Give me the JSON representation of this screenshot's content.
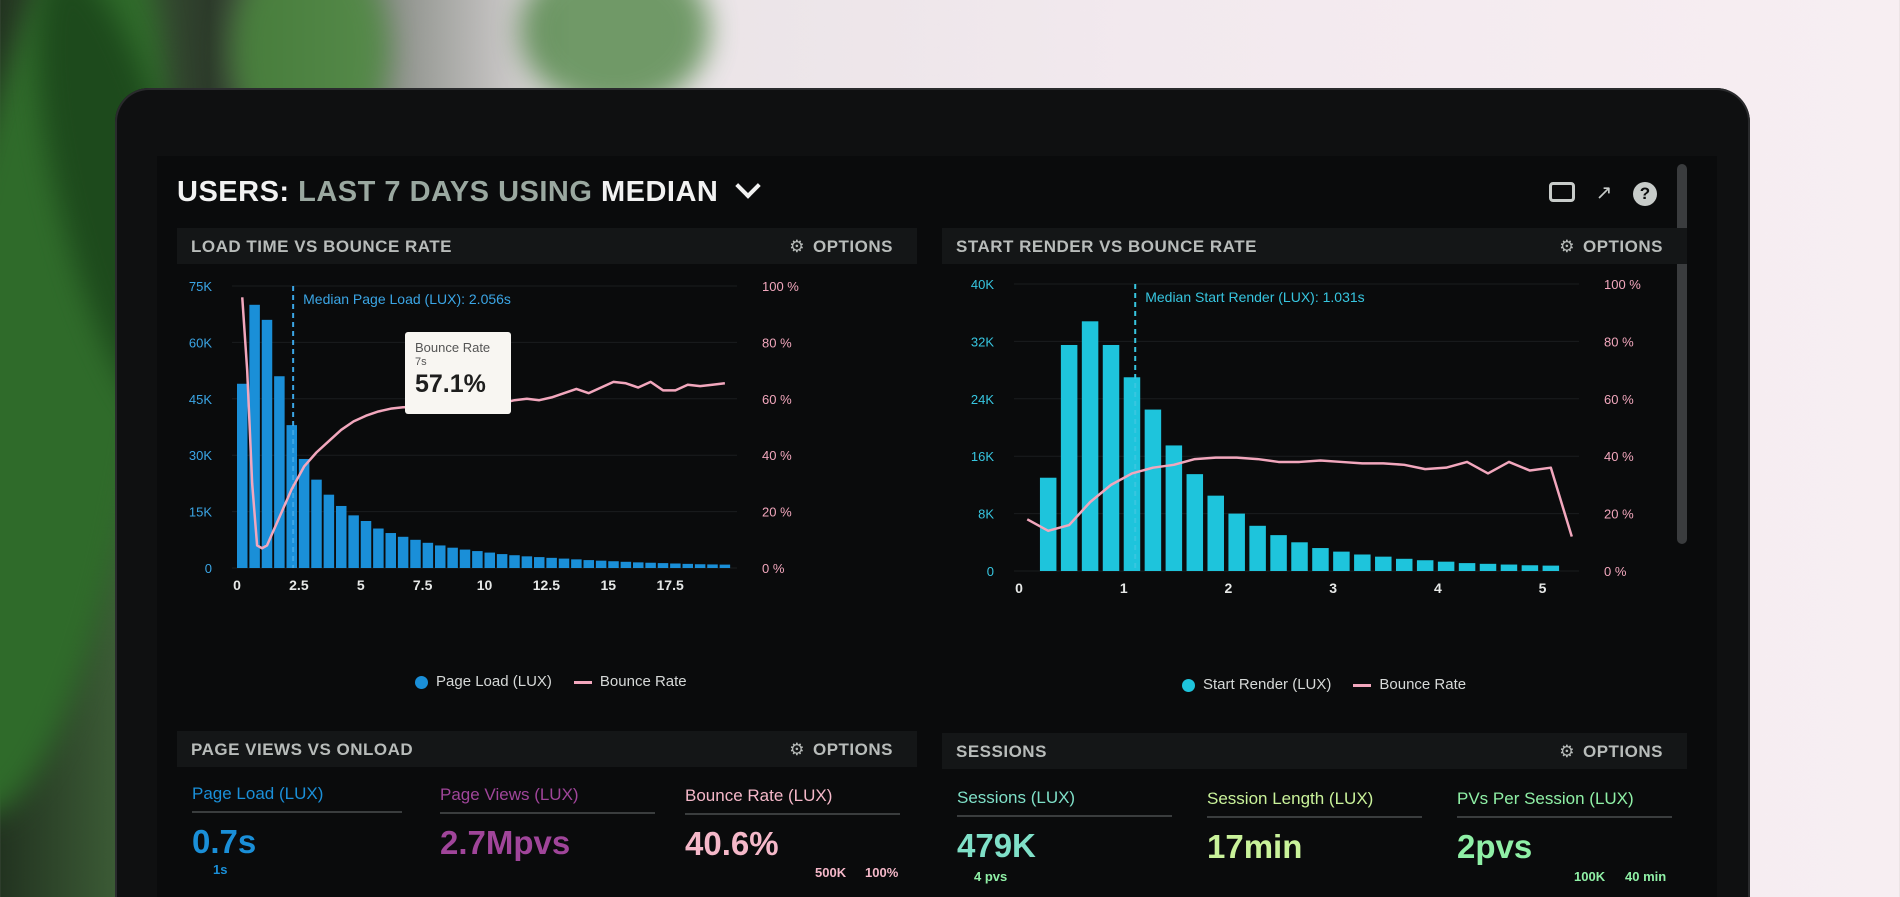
{
  "dashboard": {
    "title_users": "USERS:",
    "title_range": "LAST 7 DAYS",
    "title_using": "USING",
    "title_metric": "MEDIAN",
    "icons": [
      "monitor-icon",
      "share-icon",
      "help-icon"
    ]
  },
  "panels": {
    "load_time": {
      "title": "LOAD TIME VS BOUNCE RATE",
      "options": "OPTIONS"
    },
    "start_render": {
      "title": "START RENDER VS BOUNCE RATE",
      "options": "OPTIONS"
    },
    "page_views": {
      "title": "PAGE VIEWS VS ONLOAD",
      "options": "OPTIONS"
    },
    "sessions": {
      "title": "SESSIONS",
      "options": "OPTIONS"
    }
  },
  "tooltip": {
    "label": "Bounce Rate",
    "x": "7s",
    "value": "57.1%"
  },
  "chart_data": [
    {
      "type": "bar",
      "title": "LOAD TIME VS BOUNCE RATE",
      "annotation": "Median Page Load (LUX): 2.056s",
      "median": 2.056,
      "x_ticks": [
        "0",
        "2.5",
        "5",
        "7.5",
        "10",
        "12.5",
        "15",
        "17.5"
      ],
      "xlim": [
        0,
        20
      ],
      "y_ticks": [
        "0",
        "15K",
        "30K",
        "45K",
        "60K",
        "75K"
      ],
      "ylim": [
        0,
        75000
      ],
      "y2_ticks": [
        "0 %",
        "20 %",
        "40 %",
        "60 %",
        "80 %",
        "100 %"
      ],
      "y2lim": [
        0,
        100
      ],
      "bar_color": "#1a8fd8",
      "line_color": "#f2a7bd",
      "series": [
        {
          "name": "Page Load (LUX)",
          "x": [
            0,
            0.5,
            1,
            1.5,
            2,
            2.5,
            3,
            3.5,
            4,
            4.5,
            5,
            5.5,
            6,
            6.5,
            7,
            7.5,
            8,
            8.5,
            9,
            9.5,
            10,
            10.5,
            11,
            11.5,
            12,
            12.5,
            13,
            13.5,
            14,
            14.5,
            15,
            15.5,
            16,
            16.5,
            17,
            17.5,
            18,
            18.5,
            19,
            19.5
          ],
          "values": [
            49000,
            70000,
            66000,
            51000,
            38000,
            29000,
            23500,
            19500,
            16500,
            14000,
            12500,
            10500,
            9300,
            8300,
            7500,
            6700,
            6000,
            5400,
            4900,
            4500,
            4100,
            3700,
            3400,
            3100,
            2900,
            2700,
            2500,
            2300,
            2100,
            1950,
            1800,
            1650,
            1500,
            1400,
            1300,
            1200,
            1100,
            1000,
            950,
            900
          ]
        },
        {
          "name": "Bounce Rate",
          "x": [
            0,
            0.2,
            0.4,
            0.6,
            0.8,
            1,
            1.2,
            1.5,
            2,
            2.5,
            3,
            3.5,
            4,
            4.5,
            5,
            5.5,
            6,
            6.5,
            7,
            7.5,
            8,
            8.5,
            9,
            9.5,
            10,
            10.5,
            11,
            11.5,
            12,
            12.5,
            13,
            13.5,
            14,
            14.5,
            15,
            15.5,
            16,
            16.5,
            17,
            17.5,
            18,
            18.5,
            19,
            19.5
          ],
          "values": [
            96,
            70,
            30,
            8,
            7,
            8,
            12,
            18,
            28,
            36,
            41,
            45,
            49,
            52,
            54,
            55.5,
            56.5,
            57,
            57.1,
            58,
            58,
            57.5,
            58,
            58,
            57.5,
            58.5,
            59.5,
            60,
            59.5,
            60.5,
            62,
            63.5,
            62,
            64,
            66,
            65.5,
            64,
            66,
            63,
            63,
            65,
            64.5,
            65,
            65.5
          ]
        }
      ]
    },
    {
      "type": "bar",
      "title": "START RENDER VS BOUNCE RATE",
      "annotation": "Median Start Render (LUX): 1.031s",
      "median": 1.031,
      "x_ticks": [
        "0",
        "1",
        "2",
        "3",
        "4",
        "5"
      ],
      "xlim": [
        0,
        5.3
      ],
      "y_ticks": [
        "0",
        "8K",
        "16K",
        "24K",
        "32K",
        "40K"
      ],
      "ylim": [
        0,
        40000
      ],
      "y2_ticks": [
        "0 %",
        "20 %",
        "40 %",
        "60 %",
        "80 %",
        "100 %"
      ],
      "y2lim": [
        0,
        100
      ],
      "bar_color": "#1ec4dc",
      "line_color": "#f2a7bd",
      "series": [
        {
          "name": "Start Render (LUX)",
          "x": [
            0.2,
            0.4,
            0.6,
            0.8,
            1,
            1.2,
            1.4,
            1.6,
            1.8,
            2,
            2.2,
            2.4,
            2.6,
            2.8,
            3,
            3.2,
            3.4,
            3.6,
            3.8,
            4,
            4.2,
            4.4,
            4.6,
            4.8,
            5
          ],
          "values": [
            13000,
            31500,
            34800,
            31500,
            27000,
            22500,
            17500,
            13500,
            10500,
            8000,
            6300,
            5000,
            4000,
            3200,
            2700,
            2300,
            2000,
            1700,
            1500,
            1300,
            1100,
            1000,
            900,
            800,
            750
          ]
        },
        {
          "name": "Bounce Rate",
          "x": [
            0,
            0.2,
            0.4,
            0.6,
            0.8,
            1,
            1.2,
            1.4,
            1.6,
            1.8,
            2,
            2.2,
            2.4,
            2.6,
            2.8,
            3,
            3.2,
            3.4,
            3.6,
            3.8,
            4,
            4.2,
            4.4,
            4.6,
            4.8,
            5,
            5.2
          ],
          "values": [
            18,
            14,
            16,
            24,
            30,
            34,
            36,
            37,
            39,
            39.5,
            39.5,
            39,
            38,
            38,
            38.5,
            38,
            37.5,
            37.5,
            37,
            35.5,
            36,
            38,
            34,
            38,
            35,
            36,
            12
          ]
        }
      ]
    }
  ],
  "kpis_left": [
    {
      "label": "Page Load (LUX)",
      "value": "0.7s",
      "color": "#1a8fd8"
    },
    {
      "label": "Page Views (LUX)",
      "value": "2.7Mpvs",
      "color": "#a0459a"
    },
    {
      "label": "Bounce Rate (LUX)",
      "value": "40.6%",
      "color": "#f5b8c9"
    }
  ],
  "kpis_right": [
    {
      "label": "Sessions (LUX)",
      "value": "479K",
      "color": "#7fe0c8"
    },
    {
      "label": "Session Length (LUX)",
      "value": "17min",
      "color": "#c9f29a"
    },
    {
      "label": "PVs Per Session (LUX)",
      "value": "2pvs",
      "color": "#8ff0a6"
    }
  ],
  "small_labels": {
    "left_1s": "1s",
    "left_500k": "500K",
    "left_100pct": "100%",
    "right_4pvs": "4 pvs",
    "right_100k": "100K",
    "right_40min": "40 min"
  }
}
